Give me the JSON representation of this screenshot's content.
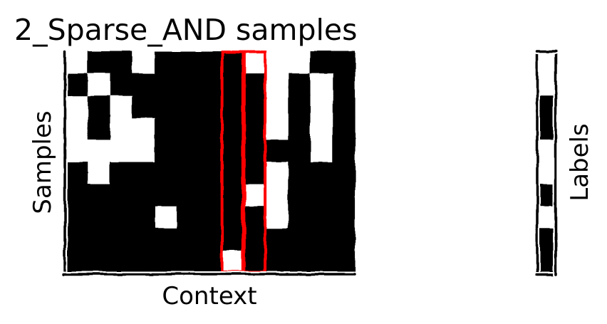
{
  "chart_data": {
    "type": "heatmap",
    "title": "2_Sparse_AND samples",
    "panels": [
      {
        "name": "context-matrix",
        "xlabel": "Context",
        "ylabel": "Samples",
        "rows": 10,
        "cols": 13,
        "value_colors": {
          "0": "#ffffff",
          "1": "#000000"
        },
        "values": [
          [
            0,
            1,
            1,
            0,
            1,
            1,
            1,
            1,
            0,
            0,
            0,
            1,
            1
          ],
          [
            1,
            0,
            1,
            1,
            1,
            1,
            1,
            1,
            1,
            0,
            1,
            0,
            1
          ],
          [
            0,
            1,
            0,
            1,
            1,
            1,
            1,
            1,
            1,
            0,
            1,
            0,
            1
          ],
          [
            0,
            1,
            0,
            0,
            1,
            1,
            1,
            1,
            1,
            0,
            1,
            0,
            1
          ],
          [
            0,
            0,
            0,
            0,
            1,
            1,
            1,
            1,
            1,
            1,
            1,
            0,
            1
          ],
          [
            1,
            0,
            1,
            1,
            1,
            1,
            1,
            1,
            1,
            0,
            1,
            1,
            1
          ],
          [
            1,
            1,
            1,
            1,
            1,
            1,
            1,
            1,
            0,
            0,
            1,
            1,
            1
          ],
          [
            1,
            1,
            1,
            1,
            0,
            1,
            1,
            1,
            1,
            0,
            1,
            1,
            1
          ],
          [
            1,
            1,
            1,
            1,
            1,
            1,
            1,
            1,
            1,
            1,
            1,
            1,
            1
          ],
          [
            1,
            1,
            1,
            1,
            1,
            1,
            1,
            0,
            1,
            1,
            1,
            1,
            1
          ]
        ],
        "highlighted_columns": [
          7,
          8
        ],
        "highlight_color": "#ff0000"
      },
      {
        "name": "labels-column",
        "ylabel": "Labels",
        "rows": 10,
        "cols": 1,
        "value_colors": {
          "0": "#ffffff",
          "1": "#000000"
        },
        "values": [
          0,
          0,
          1,
          1,
          0,
          0,
          1,
          0,
          1,
          1
        ]
      }
    ],
    "grid": false,
    "legend": "none",
    "style": "xkcd"
  }
}
